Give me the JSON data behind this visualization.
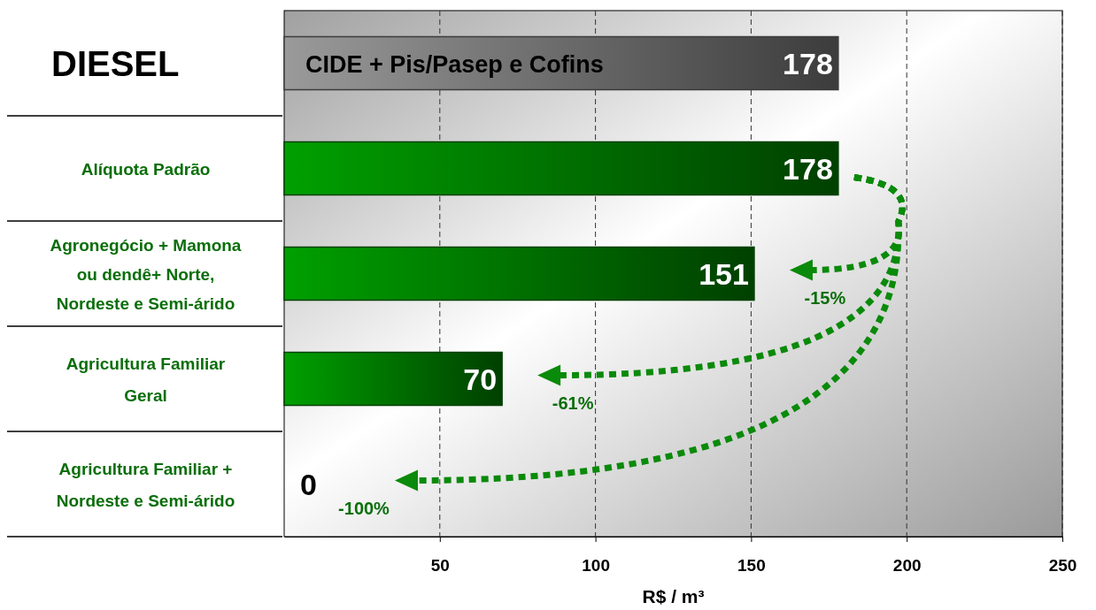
{
  "chart_data": {
    "type": "bar",
    "orientation": "horizontal",
    "title": "DIESEL",
    "categories": [
      null,
      "Alíquota Padrão",
      "Agronegócio + Mamona ou dendê+ Norte, Nordeste e Semi-árido",
      "Agricultura Familiar Geral",
      "Agricultura Familiar + Nordeste e Semi-árido"
    ],
    "values": [
      178,
      178,
      151,
      70,
      0
    ],
    "colors": [
      "#3c3c3c",
      "#004000",
      "#004000",
      "#004000",
      "#004000"
    ],
    "data_labels": true,
    "xlim": [
      0,
      250
    ],
    "xticks": [
      50,
      100,
      150,
      200,
      250
    ],
    "xlabel": "R$ / m³",
    "grid": "x",
    "annotations": [
      "CIDE + Pis/Pasep e Cofins",
      "-15%",
      "-61%",
      "-100%"
    ]
  }
}
